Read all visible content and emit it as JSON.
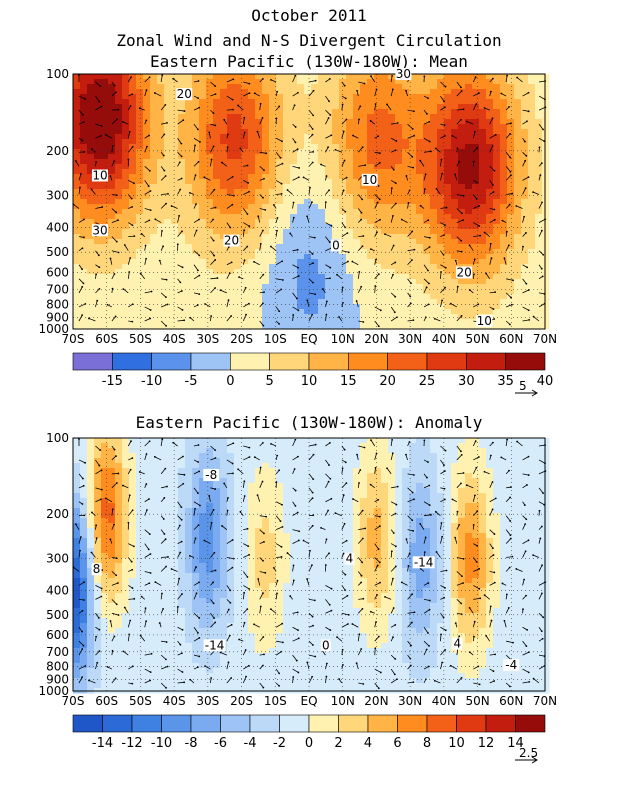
{
  "header": {
    "date": "October 2011",
    "title": "Zonal Wind and N-S Divergent Circulation",
    "mean_subtitle": "Eastern Pacific (130W-180W): Mean",
    "anom_subtitle": "Eastern Pacific (130W-180W): Anomaly"
  },
  "chart_data": [
    {
      "type": "heatmap",
      "title": "Eastern Pacific (130W-180W): Mean",
      "x_ticks": [
        "70S",
        "60S",
        "50S",
        "40S",
        "30S",
        "20S",
        "10S",
        "EQ",
        "10N",
        "20N",
        "30N",
        "40N",
        "50N",
        "60N",
        "70N"
      ],
      "y_ticks": [
        "100",
        "200",
        "300",
        "400",
        "500",
        "600",
        "700",
        "800",
        "900",
        "1000"
      ],
      "y_scale": "log-pressure",
      "colorbar": {
        "labels": [
          "-15",
          "-10",
          "-5",
          "0",
          "5",
          "10",
          "15",
          "20",
          "25",
          "30",
          "35",
          "40"
        ],
        "colors": [
          "#7a6fd6",
          "#2f6fe0",
          "#5a92ec",
          "#9dc4f4",
          "#fff2b0",
          "#ffd77a",
          "#ffb445",
          "#ff8c1f",
          "#f36018",
          "#e03a12",
          "#c21d0e",
          "#950c0a"
        ]
      },
      "contour_labels": [
        "20",
        "20",
        "10",
        "30",
        "30",
        "10",
        "0",
        "20",
        "10"
      ],
      "vector_scale_label": "5",
      "features": [
        {
          "lat": -62,
          "p": 150,
          "value": 40
        },
        {
          "lat": -22,
          "p": 180,
          "value": 25
        },
        {
          "lat": 20,
          "p": 180,
          "value": 20
        },
        {
          "lat": 48,
          "p": 230,
          "value": 35
        },
        {
          "lat": 0,
          "p": 600,
          "value": -8
        }
      ],
      "grid": true
    },
    {
      "type": "heatmap",
      "title": "Eastern Pacific (130W-180W): Anomaly",
      "x_ticks": [
        "70S",
        "60S",
        "50S",
        "40S",
        "30S",
        "20S",
        "10S",
        "EQ",
        "10N",
        "20N",
        "30N",
        "40N",
        "50N",
        "60N",
        "70N"
      ],
      "y_ticks": [
        "100",
        "200",
        "300",
        "400",
        "500",
        "600",
        "700",
        "800",
        "900",
        "1000"
      ],
      "y_scale": "log-pressure",
      "colorbar": {
        "labels": [
          "-14",
          "-12",
          "-10",
          "-8",
          "-6",
          "-4",
          "-2",
          "0",
          "2",
          "4",
          "6",
          "8",
          "10",
          "12",
          "14"
        ],
        "colors": [
          "#1f56c8",
          "#2c6ad8",
          "#3f80e3",
          "#5a95ea",
          "#7aabf0",
          "#9dc4f4",
          "#bcdaf7",
          "#d6ecfa",
          "#fff2b0",
          "#ffd77a",
          "#ffb445",
          "#ff8c1f",
          "#f36018",
          "#e03a12",
          "#c21d0e",
          "#950c0a"
        ]
      },
      "contour_labels": [
        "-8",
        "8",
        "4",
        "-14",
        "-14",
        "0",
        "4",
        "-4"
      ],
      "vector_scale_label": "2.5",
      "features": [
        {
          "lat": -60,
          "p": 200,
          "value": 10
        },
        {
          "lat": -30,
          "p": 250,
          "value": -8
        },
        {
          "lat": -13,
          "p": 300,
          "value": 4
        },
        {
          "lat": 20,
          "p": 250,
          "value": 6
        },
        {
          "lat": 33,
          "p": 300,
          "value": -6
        },
        {
          "lat": 48,
          "p": 300,
          "value": 8
        },
        {
          "lat": -70,
          "p": 400,
          "value": -14
        }
      ],
      "grid": true
    }
  ]
}
